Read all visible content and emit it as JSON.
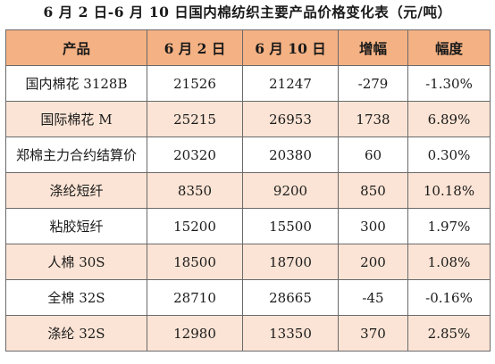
{
  "title": "6 月 2 日-6 月 10 日国内棉纺织主要产品价格变化表（元/吨）",
  "table": {
    "headers": [
      "产品",
      "6 月 2 日",
      "6 月 10 日",
      "增幅",
      "幅度"
    ],
    "rows": [
      [
        "国内棉花 3128B",
        "21526",
        "21247",
        "-279",
        "-1.30%"
      ],
      [
        "国际棉花 M",
        "25215",
        "26953",
        "1738",
        "6.89%"
      ],
      [
        "郑棉主力合约结算价",
        "20320",
        "20380",
        "60",
        "0.30%"
      ],
      [
        "涤纶短纤",
        "8350",
        "9200",
        "850",
        "10.18%"
      ],
      [
        "粘胶短纤",
        "15200",
        "15500",
        "300",
        "1.97%"
      ],
      [
        "人棉 30S",
        "18500",
        "18700",
        "200",
        "1.08%"
      ],
      [
        "全棉 32S",
        "28710",
        "28665",
        "-45",
        "-0.16%"
      ],
      [
        "涤纶 32S",
        "12980",
        "13350",
        "370",
        "2.85%"
      ]
    ]
  },
  "colors": {
    "header_bg": "#f4b183",
    "row_even_bg": "#fbe4d5",
    "row_odd_bg": "#ffffff",
    "border": "#6a6a6a"
  }
}
